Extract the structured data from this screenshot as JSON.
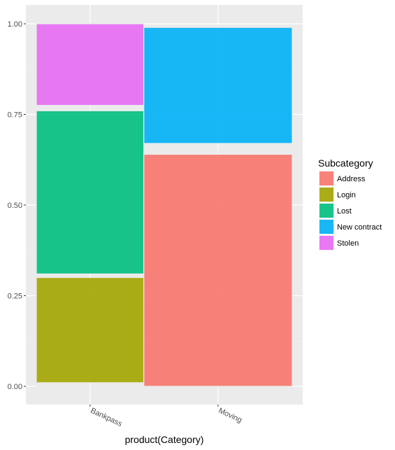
{
  "chart_data": {
    "type": "mosaic",
    "xlabel": "product(Category)",
    "ylabel": "",
    "ylim": [
      0,
      1
    ],
    "y_ticks": [
      "0.00",
      "0.25",
      "0.50",
      "0.75",
      "1.00"
    ],
    "y_tick_values": [
      0,
      0.25,
      0.5,
      0.75,
      1.0
    ],
    "grid": true,
    "legend_position": "right",
    "legend": {
      "title": "Subcategory",
      "entries": [
        {
          "name": "Address",
          "color": "#F8766D"
        },
        {
          "name": "Login",
          "color": "#A3A500"
        },
        {
          "name": "Lost",
          "color": "#00BF7D"
        },
        {
          "name": "New contract",
          "color": "#00B0F6"
        },
        {
          "name": "Stolen",
          "color": "#E76BF3"
        }
      ]
    },
    "categories": [
      {
        "name": "Bankpass",
        "share": 0.42,
        "segments": [
          {
            "subcategory": "Address",
            "ymin": 0.0,
            "ymax": 0.0
          },
          {
            "subcategory": "Login",
            "ymin": 0.01,
            "ymax": 0.3
          },
          {
            "subcategory": "Lost",
            "ymin": 0.31,
            "ymax": 0.76
          },
          {
            "subcategory": "New contract",
            "ymin": 0.77,
            "ymax": 0.77
          },
          {
            "subcategory": "Stolen",
            "ymin": 0.775,
            "ymax": 1.0
          }
        ]
      },
      {
        "name": "Moving",
        "share": 0.58,
        "segments": [
          {
            "subcategory": "Address",
            "ymin": 0.0,
            "ymax": 0.64
          },
          {
            "subcategory": "Login",
            "ymin": 0.645,
            "ymax": 0.645
          },
          {
            "subcategory": "Lost",
            "ymin": 0.65,
            "ymax": 0.65
          },
          {
            "subcategory": "New contract",
            "ymin": 0.67,
            "ymax": 0.99
          },
          {
            "subcategory": "Stolen",
            "ymin": 0.995,
            "ymax": 0.995
          }
        ]
      }
    ]
  }
}
